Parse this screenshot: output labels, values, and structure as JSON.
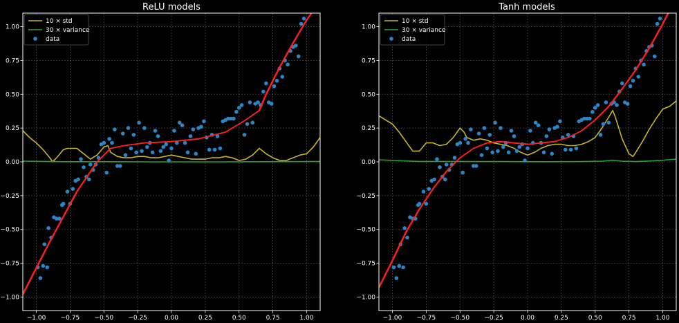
{
  "chart_data": [
    {
      "type": "scatter",
      "title": "ReLU models",
      "xlabel": "",
      "ylabel": "",
      "xlim": [
        -1.1,
        1.1
      ],
      "ylim": [
        -1.1,
        1.1
      ],
      "xticks": [
        -1.0,
        -0.75,
        -0.5,
        -0.25,
        0.0,
        0.25,
        0.5,
        0.75,
        1.0
      ],
      "xtick_labels": [
        "−1.00",
        "−0.75",
        "−0.50",
        "−0.25",
        "0.00",
        "0.25",
        "0.50",
        "0.75",
        "1.00"
      ],
      "yticks": [
        -1.0,
        -0.75,
        -0.5,
        -0.25,
        0.0,
        0.25,
        0.5,
        0.75,
        1.0
      ],
      "ytick_labels": [
        "−1.00",
        "−0.75",
        "−0.50",
        "−0.25",
        "0.00",
        "0.25",
        "0.50",
        "0.75",
        "1.00"
      ],
      "grid": true,
      "legend": "top-left",
      "legend_entries": [
        "10 × std",
        "30 × variance",
        "data"
      ],
      "series": [
        {
          "name": "10 × std",
          "color": "#c8b62a",
          "kind": "line",
          "x": [
            -1.1,
            -1.05,
            -1.0,
            -0.95,
            -0.9,
            -0.88,
            -0.85,
            -0.8,
            -0.77,
            -0.74,
            -0.7,
            -0.65,
            -0.6,
            -0.55,
            -0.5,
            -0.47,
            -0.45,
            -0.4,
            -0.35,
            -0.3,
            -0.25,
            -0.2,
            -0.15,
            -0.1,
            -0.05,
            0.0,
            0.05,
            0.1,
            0.15,
            0.2,
            0.25,
            0.3,
            0.35,
            0.4,
            0.45,
            0.5,
            0.55,
            0.6,
            0.63,
            0.65,
            0.7,
            0.75,
            0.8,
            0.85,
            0.9,
            0.95,
            1.0,
            1.05,
            1.1
          ],
          "y": [
            0.23,
            0.18,
            0.14,
            0.09,
            0.03,
            0.0,
            0.03,
            0.09,
            0.1,
            0.1,
            0.1,
            0.06,
            0.02,
            0.05,
            0.11,
            0.12,
            0.07,
            0.04,
            0.03,
            0.03,
            0.04,
            0.04,
            0.03,
            0.03,
            0.04,
            0.05,
            0.04,
            0.03,
            0.02,
            0.02,
            0.02,
            0.03,
            0.03,
            0.04,
            0.03,
            0.01,
            0.02,
            0.05,
            0.08,
            0.1,
            0.06,
            0.03,
            0.01,
            0.01,
            0.03,
            0.05,
            0.06,
            0.11,
            0.18
          ]
        },
        {
          "name": "30 × variance",
          "color": "#2aa12a",
          "kind": "line",
          "x": [
            -1.1,
            -0.8,
            -0.5,
            -0.2,
            0.1,
            0.4,
            0.7,
            1.0,
            1.1
          ],
          "y": [
            0.005,
            0.001,
            0.001,
            0.0,
            0.0,
            0.0,
            0.001,
            0.002,
            0.003
          ]
        },
        {
          "name": "model",
          "color": "#ff2020",
          "kind": "line",
          "x": [
            -1.1,
            -0.9,
            -0.7,
            -0.55,
            -0.45,
            -0.35,
            -0.2,
            0.0,
            0.2,
            0.4,
            0.55,
            0.65,
            0.7,
            0.8,
            0.9,
            1.0,
            1.05
          ],
          "y": [
            -0.98,
            -0.59,
            -0.22,
            0.0,
            0.1,
            0.12,
            0.14,
            0.15,
            0.17,
            0.22,
            0.31,
            0.38,
            0.5,
            0.7,
            0.88,
            1.05,
            1.12
          ]
        },
        {
          "name": "data",
          "color": "#2b86c8",
          "kind": "scatter",
          "x": [
            -0.99,
            -0.97,
            -0.95,
            -0.94,
            -0.92,
            -0.91,
            -0.89,
            -0.87,
            -0.85,
            -0.83,
            -0.81,
            -0.8,
            -0.77,
            -0.75,
            -0.73,
            -0.71,
            -0.69,
            -0.67,
            -0.65,
            -0.63,
            -0.61,
            -0.6,
            -0.58,
            -0.56,
            -0.54,
            -0.52,
            -0.5,
            -0.48,
            -0.46,
            -0.44,
            -0.42,
            -0.4,
            -0.38,
            -0.36,
            -0.34,
            -0.32,
            -0.3,
            -0.28,
            -0.26,
            -0.24,
            -0.22,
            -0.2,
            -0.18,
            -0.16,
            -0.14,
            -0.12,
            -0.1,
            -0.08,
            -0.06,
            -0.04,
            -0.02,
            0.0,
            0.02,
            0.04,
            0.06,
            0.08,
            0.1,
            0.12,
            0.14,
            0.16,
            0.18,
            0.2,
            0.22,
            0.24,
            0.26,
            0.28,
            0.3,
            0.32,
            0.34,
            0.36,
            0.38,
            0.4,
            0.42,
            0.44,
            0.46,
            0.48,
            0.5,
            0.52,
            0.54,
            0.56,
            0.58,
            0.6,
            0.62,
            0.64,
            0.66,
            0.68,
            0.7,
            0.72,
            0.74,
            0.76,
            0.78,
            0.8,
            0.82,
            0.84,
            0.86,
            0.88,
            0.9,
            0.92,
            0.94,
            0.96,
            0.98
          ],
          "y": [
            -0.78,
            -0.86,
            -0.77,
            -0.61,
            -0.78,
            -0.49,
            -0.56,
            -0.41,
            -0.42,
            -0.42,
            -0.32,
            -0.31,
            -0.22,
            -0.31,
            -0.2,
            -0.14,
            -0.13,
            0.02,
            -0.04,
            -0.11,
            -0.13,
            -0.02,
            -0.06,
            -0.02,
            0.03,
            0.13,
            0.14,
            -0.08,
            0.17,
            0.14,
            0.24,
            -0.03,
            -0.03,
            0.21,
            0.05,
            0.25,
            0.1,
            0.2,
            0.07,
            0.29,
            0.08,
            0.25,
            0.11,
            0.14,
            0.07,
            0.23,
            0.19,
            0.08,
            0.11,
            0.13,
            0.01,
            0.1,
            0.23,
            0.14,
            0.29,
            0.27,
            0.14,
            0.07,
            0.19,
            0.24,
            0.06,
            0.25,
            0.26,
            0.3,
            0.18,
            0.09,
            0.2,
            0.09,
            0.19,
            0.1,
            0.3,
            0.31,
            0.32,
            0.32,
            0.32,
            0.37,
            0.4,
            0.42,
            0.2,
            0.28,
            0.44,
            0.29,
            0.43,
            0.44,
            0.42,
            0.52,
            0.58,
            0.44,
            0.43,
            0.56,
            0.6,
            0.69,
            0.63,
            0.75,
            0.72,
            0.82,
            0.85,
            0.86,
            0.78,
            1.02,
            1.06
          ]
        }
      ]
    },
    {
      "type": "scatter",
      "title": "Tanh models",
      "xlabel": "",
      "ylabel": "",
      "xlim": [
        -1.1,
        1.1
      ],
      "ylim": [
        -1.1,
        1.1
      ],
      "xticks": [
        -1.0,
        -0.75,
        -0.5,
        -0.25,
        0.0,
        0.25,
        0.5,
        0.75,
        1.0
      ],
      "xtick_labels": [
        "−1.00",
        "−0.75",
        "−0.50",
        "−0.25",
        "0.00",
        "0.25",
        "0.50",
        "0.75",
        "1.00"
      ],
      "yticks": [
        -1.0,
        -0.75,
        -0.5,
        -0.25,
        0.0,
        0.25,
        0.5,
        0.75,
        1.0
      ],
      "ytick_labels": [
        "−1.00",
        "−0.75",
        "−0.50",
        "−0.25",
        "0.00",
        "0.25",
        "0.50",
        "0.75",
        "1.00"
      ],
      "grid": true,
      "legend": "top-left",
      "legend_entries": [
        "10 × std",
        "30 × variance",
        "data"
      ],
      "series": [
        {
          "name": "10 × std",
          "color": "#c8b62a",
          "kind": "line",
          "x": [
            -1.1,
            -1.05,
            -1.0,
            -0.95,
            -0.9,
            -0.85,
            -0.8,
            -0.75,
            -0.7,
            -0.65,
            -0.6,
            -0.55,
            -0.5,
            -0.47,
            -0.45,
            -0.4,
            -0.35,
            -0.3,
            -0.25,
            -0.2,
            -0.15,
            -0.1,
            -0.05,
            0.0,
            0.05,
            0.1,
            0.15,
            0.2,
            0.25,
            0.3,
            0.35,
            0.4,
            0.45,
            0.5,
            0.55,
            0.6,
            0.63,
            0.65,
            0.7,
            0.75,
            0.78,
            0.8,
            0.85,
            0.9,
            0.95,
            1.0,
            1.05,
            1.1
          ],
          "y": [
            0.34,
            0.31,
            0.28,
            0.22,
            0.15,
            0.08,
            0.08,
            0.14,
            0.14,
            0.12,
            0.13,
            0.18,
            0.25,
            0.22,
            0.18,
            0.16,
            0.17,
            0.16,
            0.14,
            0.13,
            0.12,
            0.1,
            0.07,
            0.05,
            0.07,
            0.1,
            0.12,
            0.13,
            0.13,
            0.12,
            0.12,
            0.13,
            0.15,
            0.18,
            0.25,
            0.33,
            0.38,
            0.33,
            0.17,
            0.06,
            0.04,
            0.07,
            0.15,
            0.24,
            0.32,
            0.39,
            0.41,
            0.45
          ]
        },
        {
          "name": "30 × variance",
          "color": "#2aa12a",
          "kind": "line",
          "x": [
            -1.1,
            -1.0,
            -0.8,
            -0.6,
            -0.4,
            -0.2,
            0.0,
            0.2,
            0.4,
            0.55,
            0.63,
            0.7,
            0.8,
            0.9,
            1.0,
            1.1
          ],
          "y": [
            0.015,
            0.01,
            0.003,
            0.003,
            0.002,
            0.002,
            0.001,
            0.001,
            0.002,
            0.005,
            0.012,
            0.005,
            0.002,
            0.006,
            0.012,
            0.02
          ]
        },
        {
          "name": "model",
          "color": "#ff2020",
          "kind": "line",
          "x": [
            -1.1,
            -1.0,
            -0.9,
            -0.8,
            -0.7,
            -0.6,
            -0.5,
            -0.4,
            -0.3,
            -0.2,
            -0.1,
            0.0,
            0.1,
            0.2,
            0.3,
            0.4,
            0.5,
            0.6,
            0.7,
            0.8,
            0.9,
            1.0,
            1.05
          ],
          "y": [
            -0.93,
            -0.73,
            -0.52,
            -0.35,
            -0.2,
            -0.07,
            0.03,
            0.1,
            0.14,
            0.15,
            0.14,
            0.13,
            0.14,
            0.15,
            0.18,
            0.23,
            0.31,
            0.41,
            0.54,
            0.68,
            0.84,
            1.02,
            1.12
          ]
        },
        {
          "name": "data",
          "color": "#2b86c8",
          "kind": "scatter",
          "x": [
            -0.99,
            -0.97,
            -0.95,
            -0.94,
            -0.92,
            -0.91,
            -0.89,
            -0.87,
            -0.85,
            -0.83,
            -0.81,
            -0.8,
            -0.77,
            -0.75,
            -0.73,
            -0.71,
            -0.69,
            -0.67,
            -0.65,
            -0.63,
            -0.61,
            -0.6,
            -0.58,
            -0.56,
            -0.54,
            -0.52,
            -0.5,
            -0.48,
            -0.46,
            -0.44,
            -0.42,
            -0.4,
            -0.38,
            -0.36,
            -0.34,
            -0.32,
            -0.3,
            -0.28,
            -0.26,
            -0.24,
            -0.22,
            -0.2,
            -0.18,
            -0.16,
            -0.14,
            -0.12,
            -0.1,
            -0.08,
            -0.06,
            -0.04,
            -0.02,
            0.0,
            0.02,
            0.04,
            0.06,
            0.08,
            0.1,
            0.12,
            0.14,
            0.16,
            0.18,
            0.2,
            0.22,
            0.24,
            0.26,
            0.28,
            0.3,
            0.32,
            0.34,
            0.36,
            0.38,
            0.4,
            0.42,
            0.44,
            0.46,
            0.48,
            0.5,
            0.52,
            0.54,
            0.56,
            0.58,
            0.6,
            0.62,
            0.64,
            0.66,
            0.68,
            0.7,
            0.72,
            0.74,
            0.76,
            0.78,
            0.8,
            0.82,
            0.84,
            0.86,
            0.88,
            0.9,
            0.92,
            0.94,
            0.96,
            0.98
          ],
          "y": [
            -0.78,
            -0.86,
            -0.77,
            -0.61,
            -0.78,
            -0.49,
            -0.56,
            -0.41,
            -0.42,
            -0.42,
            -0.32,
            -0.31,
            -0.22,
            -0.31,
            -0.2,
            -0.14,
            -0.13,
            0.02,
            -0.04,
            -0.11,
            -0.13,
            -0.02,
            -0.06,
            -0.02,
            0.03,
            0.13,
            0.14,
            -0.08,
            0.17,
            0.14,
            0.24,
            -0.03,
            -0.03,
            0.21,
            0.05,
            0.25,
            0.1,
            0.2,
            0.07,
            0.29,
            0.08,
            0.25,
            0.11,
            0.14,
            0.07,
            0.23,
            0.19,
            0.08,
            0.11,
            0.13,
            0.01,
            0.1,
            0.23,
            0.14,
            0.29,
            0.27,
            0.14,
            0.07,
            0.19,
            0.24,
            0.06,
            0.25,
            0.26,
            0.3,
            0.18,
            0.09,
            0.2,
            0.09,
            0.19,
            0.1,
            0.3,
            0.31,
            0.32,
            0.32,
            0.32,
            0.37,
            0.4,
            0.42,
            0.2,
            0.28,
            0.44,
            0.29,
            0.43,
            0.44,
            0.42,
            0.52,
            0.58,
            0.44,
            0.43,
            0.56,
            0.6,
            0.69,
            0.63,
            0.75,
            0.72,
            0.82,
            0.85,
            0.86,
            0.78,
            1.02,
            1.06
          ]
        }
      ]
    }
  ]
}
